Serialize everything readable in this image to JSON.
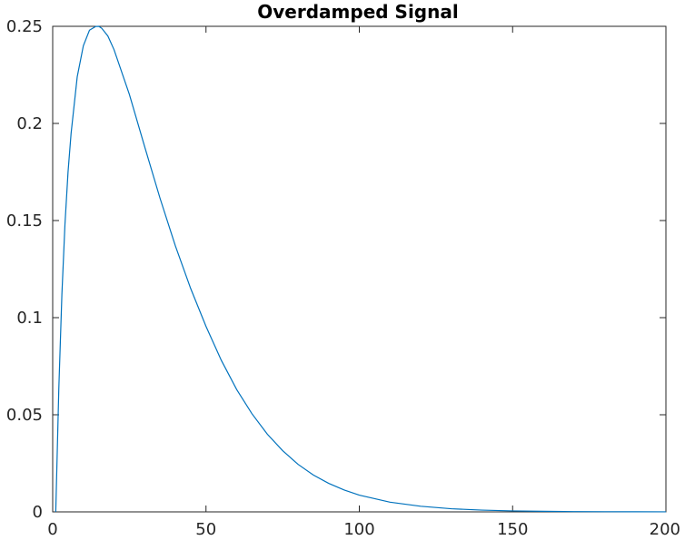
{
  "chart_data": {
    "type": "line",
    "title": "Overdamped Signal",
    "xlabel": "",
    "ylabel": "",
    "xlim": [
      0,
      200
    ],
    "ylim": [
      0,
      0.25
    ],
    "grid": false,
    "x_ticks": [
      0,
      50,
      100,
      150,
      200
    ],
    "x_tick_labels": [
      "0",
      "50",
      "100",
      "150",
      "200"
    ],
    "y_ticks": [
      0,
      0.05,
      0.1,
      0.15,
      0.2,
      0.25
    ],
    "y_tick_labels": [
      "0",
      "0.05",
      "0.1",
      "0.15",
      "0.2",
      "0.25"
    ],
    "series": [
      {
        "color": "#0072BD",
        "x": [
          1,
          2,
          3,
          4,
          5,
          6,
          8,
          10,
          12,
          14,
          15,
          16,
          18,
          20,
          25,
          30,
          35,
          40,
          45,
          50,
          55,
          60,
          65,
          70,
          75,
          80,
          85,
          90,
          95,
          100,
          110,
          120,
          130,
          140,
          150,
          160,
          170,
          180,
          190,
          200
        ],
        "values": [
          0.0,
          0.0636,
          0.112,
          0.148,
          0.1749,
          0.1949,
          0.224,
          0.24,
          0.248,
          0.2499,
          0.25,
          0.249,
          0.245,
          0.238,
          0.215,
          0.188,
          0.1615,
          0.137,
          0.115,
          0.0955,
          0.078,
          0.063,
          0.0505,
          0.04,
          0.0315,
          0.0245,
          0.019,
          0.0147,
          0.0113,
          0.0086,
          0.005,
          0.0029,
          0.0016,
          0.0009,
          0.0005,
          0.0003,
          0.00015,
          8e-05,
          4e-05,
          2e-05
        ]
      }
    ]
  }
}
